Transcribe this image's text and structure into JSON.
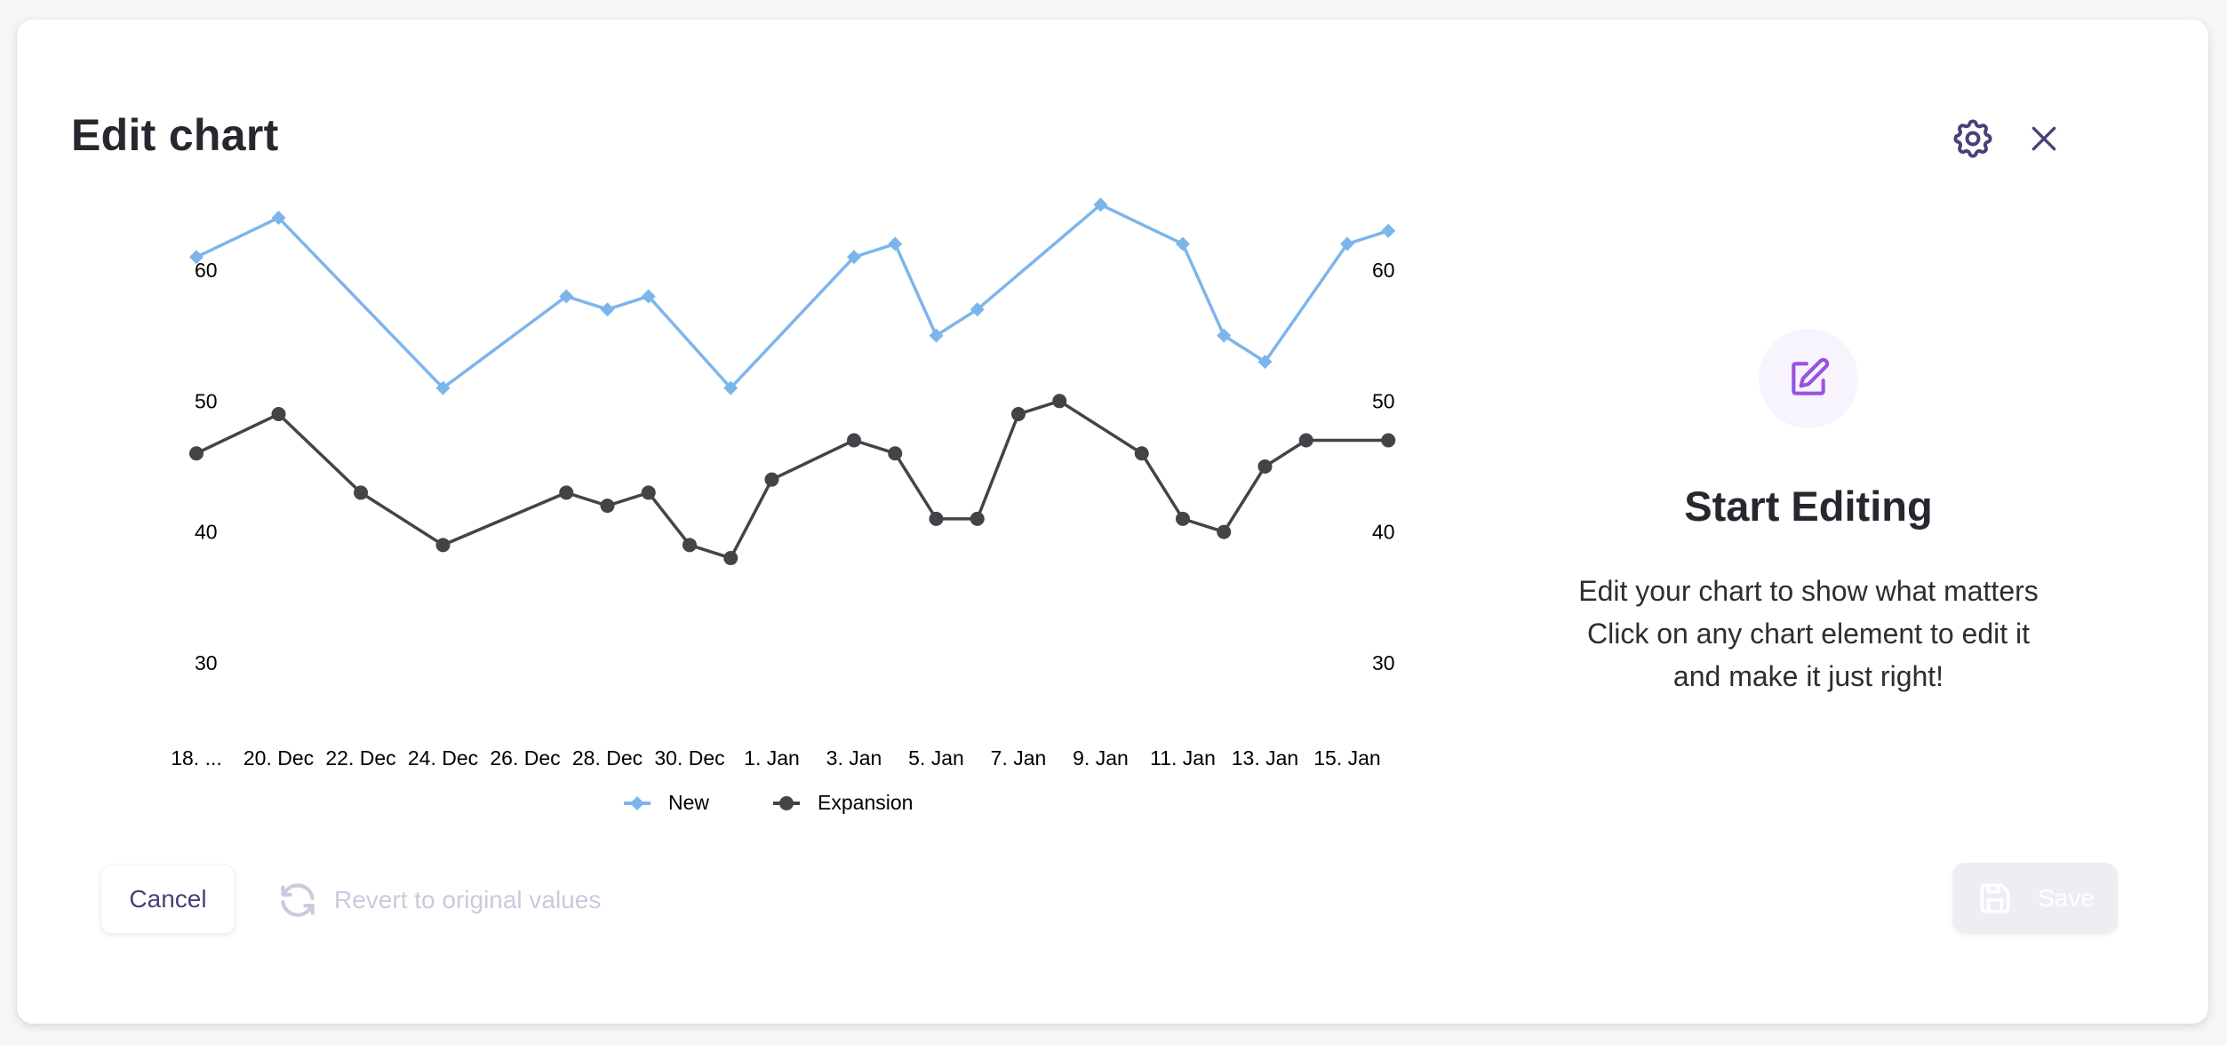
{
  "dialog": {
    "title": "Edit chart",
    "settings_icon": "gear-icon",
    "close_icon": "close-icon"
  },
  "right_panel": {
    "icon": "edit-pencil-square-icon",
    "title": "Start Editing",
    "description_lines": [
      "Edit your chart to show what matters",
      "Click on any chart element to edit it",
      "and make it just right!"
    ]
  },
  "footer": {
    "cancel_label": "Cancel",
    "revert_label": "Revert to original values",
    "revert_icon": "refresh-icon",
    "save_label": "Save",
    "save_icon": "floppy-disk-icon"
  },
  "colors": {
    "new": "#7cb5ec",
    "expansion": "#434348",
    "accent": "#4a3f7a",
    "edit_icon": "#9b51e0"
  },
  "chart_data": {
    "type": "line",
    "title": "",
    "xlabel": "",
    "ylabel": "",
    "ylim": [
      30,
      60
    ],
    "yticks": [
      30,
      40,
      50,
      60
    ],
    "dual_y_axis": true,
    "grid": false,
    "legend_position": "bottom",
    "x_tick_labels": [
      "18. ...",
      "20. Dec",
      "22. Dec",
      "24. Dec",
      "26. Dec",
      "28. Dec",
      "30. Dec",
      "1. Jan",
      "3. Jan",
      "5. Jan",
      "7. Jan",
      "9. Jan",
      "11. Jan",
      "13. Jan",
      "15. Jan"
    ],
    "x_day_range": [
      0,
      29
    ],
    "series": [
      {
        "name": "New",
        "marker": "diamond",
        "color": "#7cb5ec",
        "points": [
          {
            "x": "18. Dec",
            "d": 0,
            "y": 61
          },
          {
            "x": "20. Dec",
            "d": 2,
            "y": 64
          },
          {
            "x": "24. Dec",
            "d": 6,
            "y": 51
          },
          {
            "x": "27. Dec",
            "d": 9,
            "y": 58
          },
          {
            "x": "28. Dec",
            "d": 10,
            "y": 57
          },
          {
            "x": "29. Dec",
            "d": 11,
            "y": 58
          },
          {
            "x": "31. Dec",
            "d": 13,
            "y": 51
          },
          {
            "x": "3. Jan",
            "d": 16,
            "y": 61
          },
          {
            "x": "4. Jan",
            "d": 17,
            "y": 62
          },
          {
            "x": "5. Jan",
            "d": 18,
            "y": 55
          },
          {
            "x": "6. Jan",
            "d": 19,
            "y": 57
          },
          {
            "x": "9. Jan",
            "d": 22,
            "y": 65
          },
          {
            "x": "11. Jan",
            "d": 24,
            "y": 62
          },
          {
            "x": "12. Jan",
            "d": 25,
            "y": 55
          },
          {
            "x": "13. Jan",
            "d": 26,
            "y": 53
          },
          {
            "x": "15. Jan",
            "d": 28,
            "y": 62
          },
          {
            "x": "16. Jan",
            "d": 29,
            "y": 63
          }
        ]
      },
      {
        "name": "Expansion",
        "marker": "circle",
        "color": "#434348",
        "points": [
          {
            "x": "18. Dec",
            "d": 0,
            "y": 46
          },
          {
            "x": "20. Dec",
            "d": 2,
            "y": 49
          },
          {
            "x": "22. Dec",
            "d": 4,
            "y": 43
          },
          {
            "x": "24. Dec",
            "d": 6,
            "y": 39
          },
          {
            "x": "27. Dec",
            "d": 9,
            "y": 43
          },
          {
            "x": "28. Dec",
            "d": 10,
            "y": 42
          },
          {
            "x": "29. Dec",
            "d": 11,
            "y": 43
          },
          {
            "x": "30. Dec",
            "d": 12,
            "y": 39
          },
          {
            "x": "31. Dec",
            "d": 13,
            "y": 38
          },
          {
            "x": "1. Jan",
            "d": 14,
            "y": 44
          },
          {
            "x": "3. Jan",
            "d": 16,
            "y": 47
          },
          {
            "x": "4. Jan",
            "d": 17,
            "y": 46
          },
          {
            "x": "5. Jan",
            "d": 18,
            "y": 41
          },
          {
            "x": "6. Jan",
            "d": 19,
            "y": 41
          },
          {
            "x": "7. Jan",
            "d": 20,
            "y": 49
          },
          {
            "x": "8. Jan",
            "d": 21,
            "y": 50
          },
          {
            "x": "10. Jan",
            "d": 23,
            "y": 46
          },
          {
            "x": "11. Jan",
            "d": 24,
            "y": 41
          },
          {
            "x": "12. Jan",
            "d": 25,
            "y": 40
          },
          {
            "x": "13. Jan",
            "d": 26,
            "y": 45
          },
          {
            "x": "14. Jan",
            "d": 27,
            "y": 47
          },
          {
            "x": "16. Jan",
            "d": 29,
            "y": 47
          }
        ]
      }
    ]
  }
}
